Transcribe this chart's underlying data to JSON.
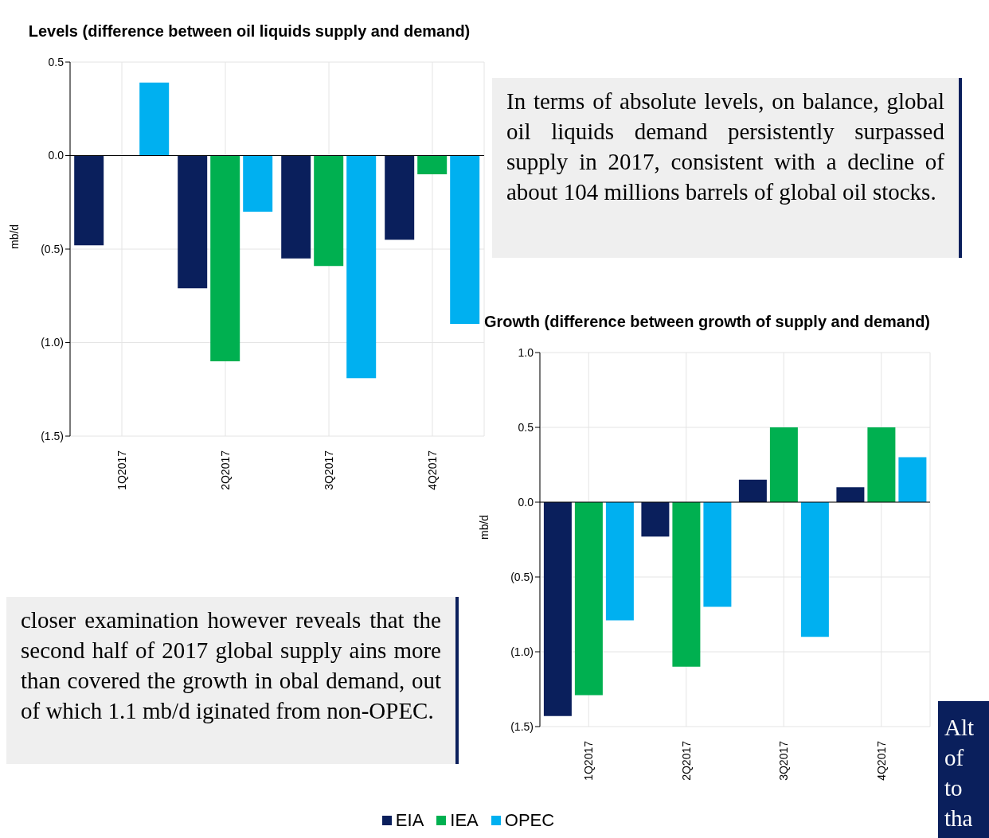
{
  "chart_data": [
    {
      "type": "bar",
      "title": "Levels (difference between oil liquids supply and demand)",
      "ylabel": "mb/d",
      "categories": [
        "1Q2017",
        "2Q2017",
        "3Q2017",
        "4Q2017"
      ],
      "series": [
        {
          "color": "#0a1f5c",
          "values": [
            -0.48,
            -0.71,
            -0.55,
            -0.45
          ]
        },
        {
          "color": "#00b050",
          "values": [
            null,
            -1.1,
            -0.59,
            -0.1
          ]
        },
        {
          "color": "#00b0f0",
          "values": [
            0.39,
            -0.3,
            -1.19,
            -0.9
          ]
        }
      ],
      "ylim": [
        -1.5,
        0.5
      ],
      "yticks": [
        {
          "value": -1.5,
          "label": "(1.5)"
        },
        {
          "value": -1,
          "label": "(1.0)"
        },
        {
          "value": -0.5,
          "label": "(0.5)"
        },
        {
          "value": 0,
          "label": "0.0"
        },
        {
          "value": 0.5,
          "label": "0.5"
        }
      ],
      "grid": true,
      "annotations": [
        "In terms of absolute levels, on balance, global oil liquids demand persistently surpassed supply in 2017, consistent with a decline of about 104 millions barrels of global oil stocks."
      ]
    },
    {
      "type": "bar",
      "title": "Growth (difference between growth of supply and demand)",
      "ylabel": "mb/d",
      "categories": [
        "1Q2017",
        "2Q2017",
        "3Q2017",
        "4Q2017"
      ],
      "series": [
        {
          "name": "EIA",
          "color": "#0a1f5c",
          "values": [
            -1.43,
            -0.23,
            0.15,
            0.1
          ]
        },
        {
          "name": "IEA",
          "color": "#00b050",
          "values": [
            -1.29,
            -1.1,
            0.5,
            0.5
          ]
        },
        {
          "name": "OPEC",
          "color": "#00b0f0",
          "values": [
            -0.79,
            -0.7,
            -0.9,
            0.3
          ]
        }
      ],
      "ylim": [
        -1.5,
        1
      ],
      "yticks": [
        {
          "value": -1.5,
          "label": "(1.5)"
        },
        {
          "value": -1,
          "label": "(1.0)"
        },
        {
          "value": -0.5,
          "label": "(0.5)"
        },
        {
          "value": 0,
          "label": "0.0"
        },
        {
          "value": 0.5,
          "label": "0.5"
        },
        {
          "value": 1,
          "label": "1.0"
        }
      ],
      "grid": true,
      "legend": "bottom",
      "annotations": [
        "closer examination however reveals that the second half of 2017 global supply ains more than covered the growth in obal demand, out of which 1.1 mb/d iginated from non-OPEC.",
        "Alt of to tha"
      ]
    }
  ]
}
